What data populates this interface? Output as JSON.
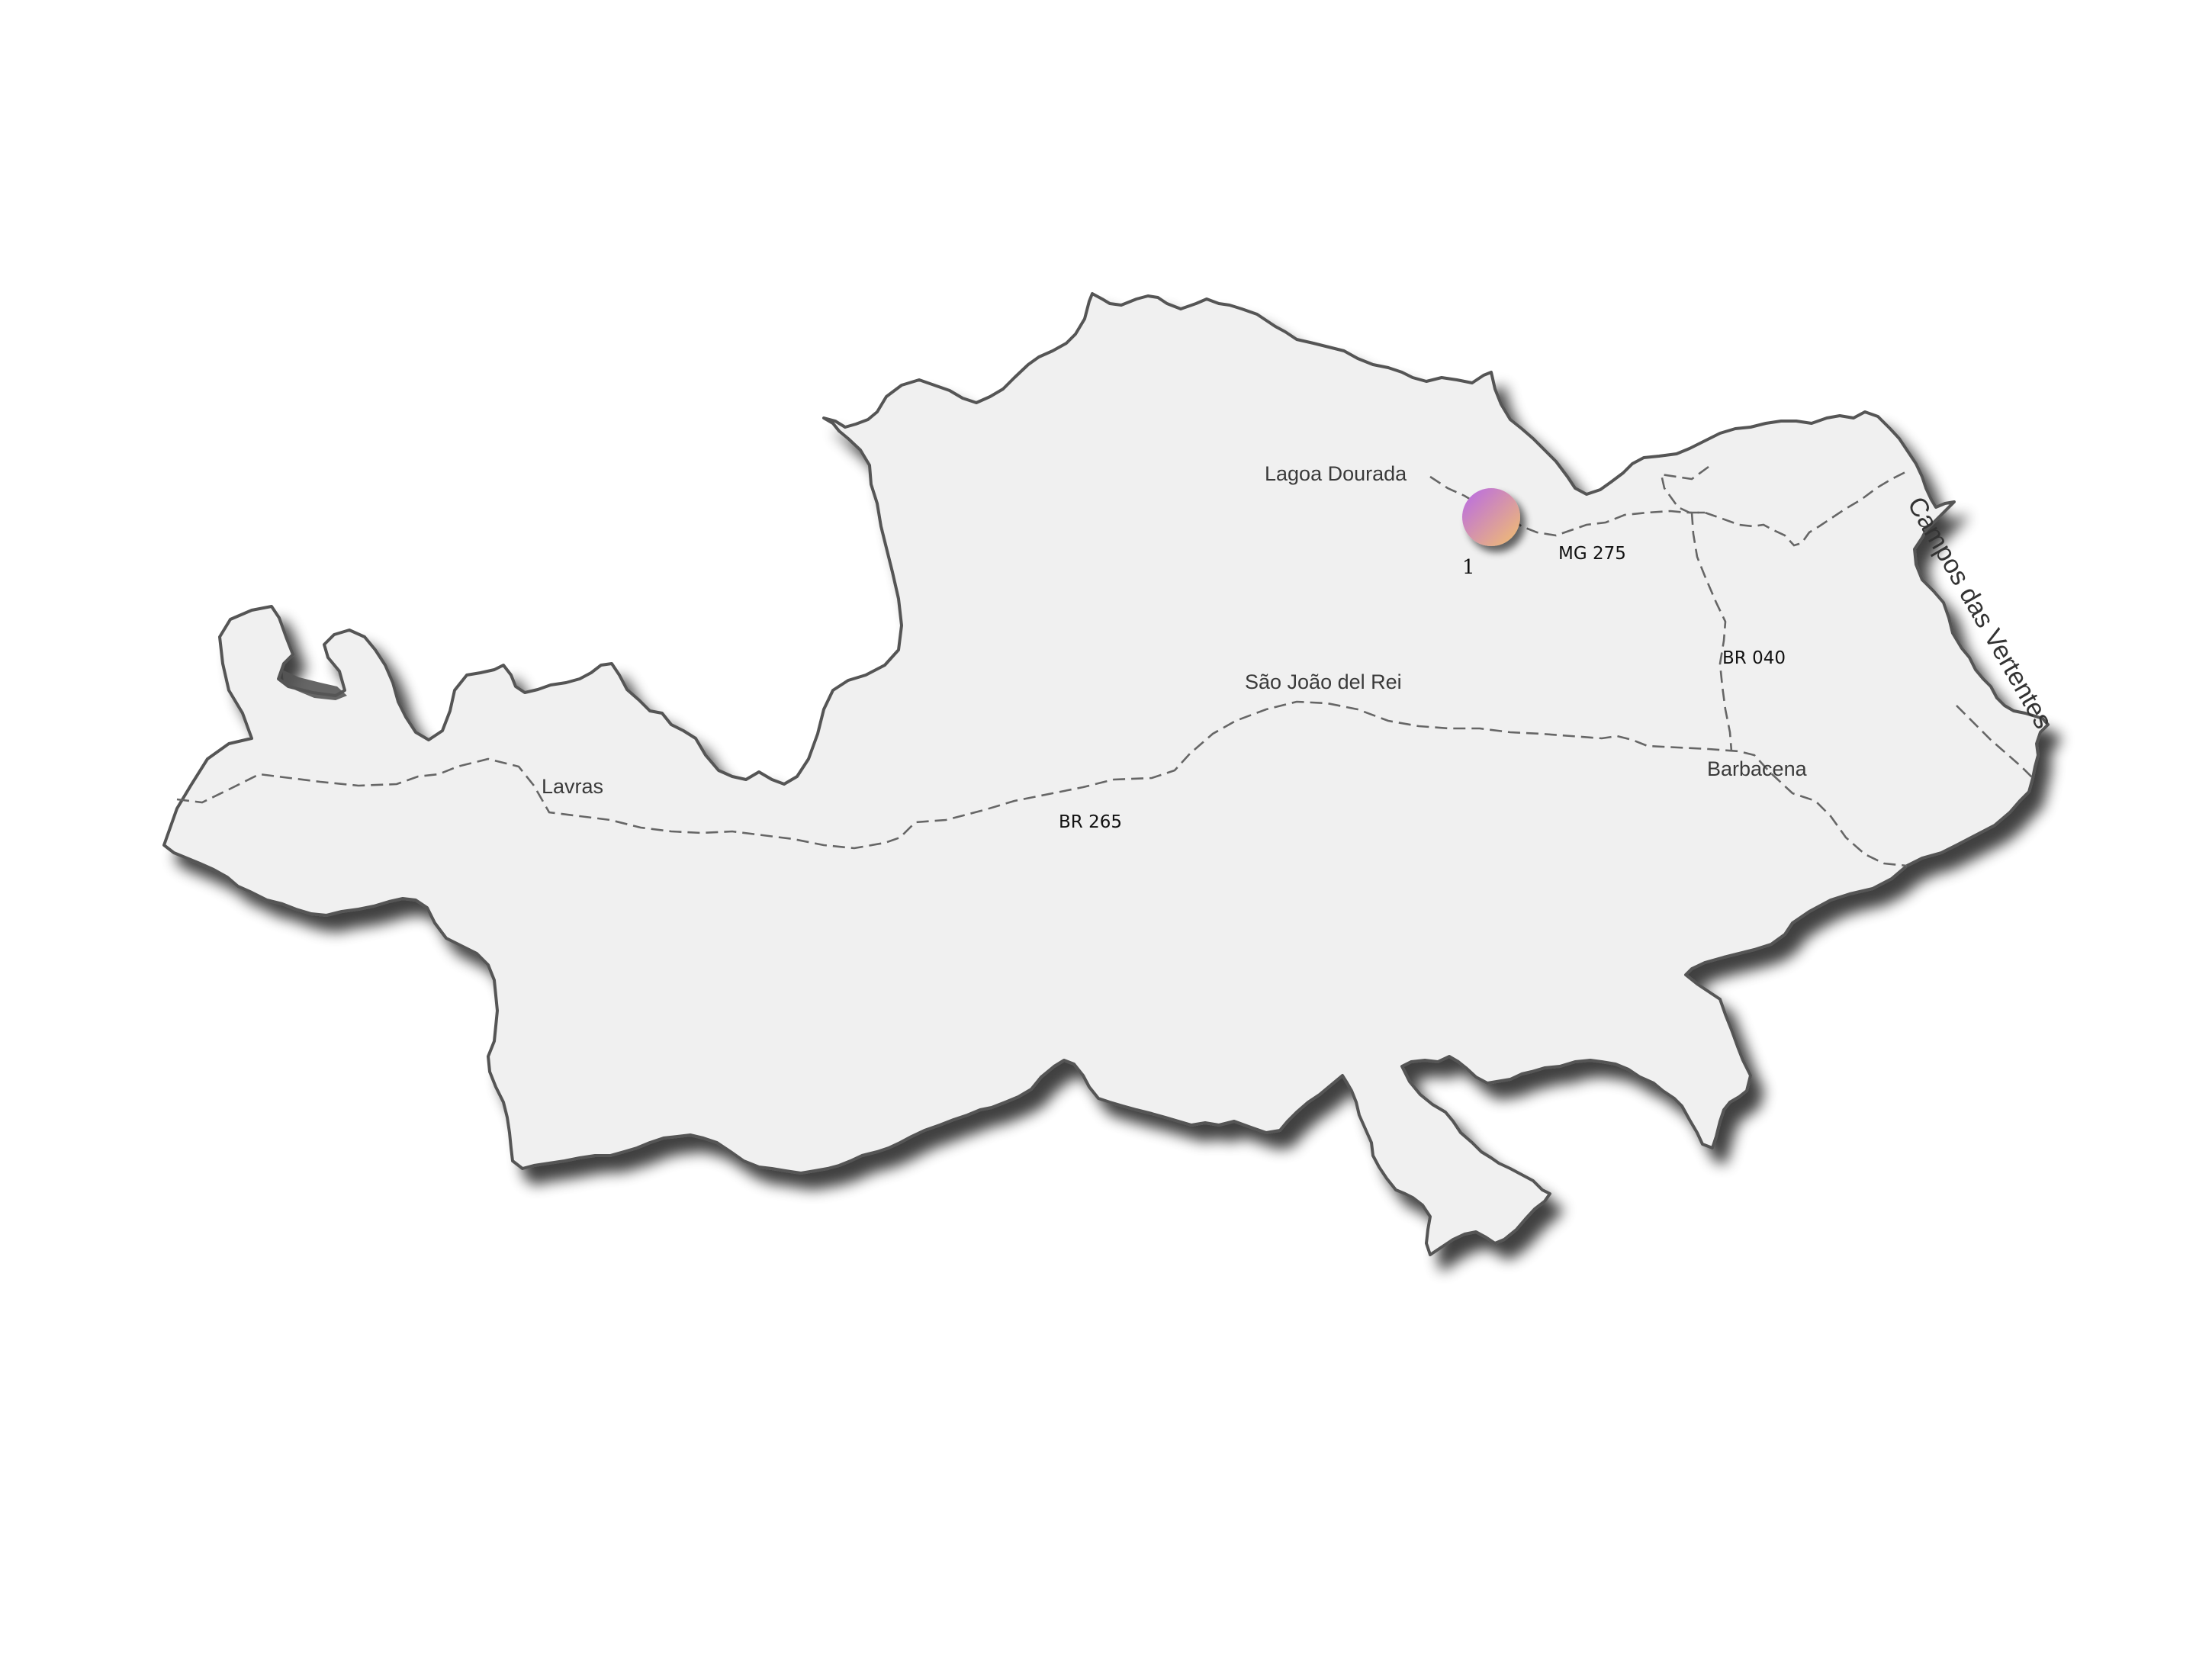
{
  "map": {
    "region_label": "Campos das Vertentes",
    "cities": {
      "lagoa_dourada": "Lagoa Dourada",
      "sao_joao_del_rei": "São João del Rei",
      "lavras": "Lavras",
      "barbacena": "Barbacena"
    },
    "roads": {
      "mg275": "MG 275",
      "br040": "BR 040",
      "br265": "BR 265"
    },
    "marker": {
      "label": "1",
      "gradient_start": "#b768e8",
      "gradient_end": "#f3c06c"
    },
    "colors": {
      "region_fill": "#f0f0f0",
      "border": "#555555",
      "road": "#666666",
      "shadow": "#7a7a7a"
    }
  }
}
